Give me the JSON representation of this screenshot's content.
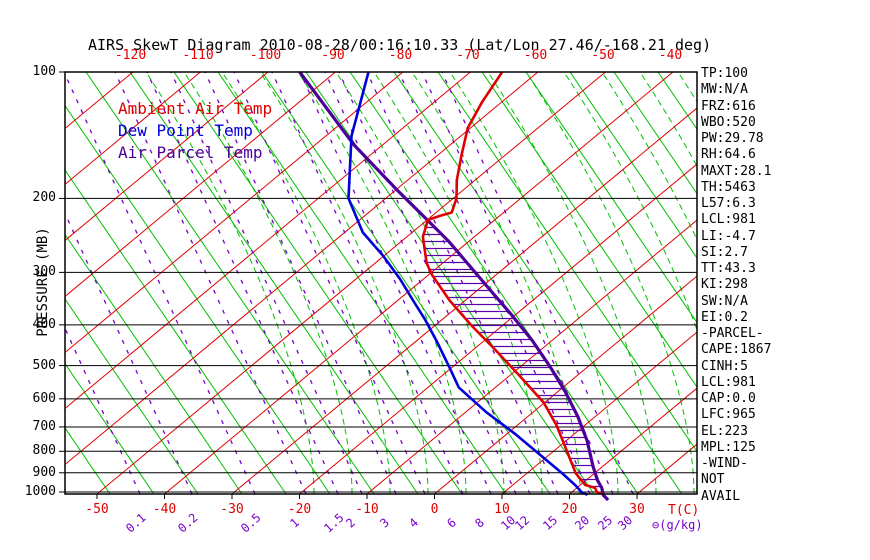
{
  "title": "AIRS SkewT Diagram 2010-08-28/00:16:10.33 (Lat/Lon 27.46/-168.21 deg)",
  "legend": {
    "items": [
      {
        "key": "ambient",
        "label": "Ambient Air Temp"
      },
      {
        "key": "dew",
        "label": "Dew Point Temp"
      },
      {
        "key": "parcel",
        "label": "Air Parcel Temp"
      }
    ]
  },
  "axes": {
    "pressure": {
      "label": "PRESSURE (MB)",
      "ticks": [
        100,
        200,
        300,
        400,
        500,
        600,
        700,
        800,
        900,
        1000
      ]
    },
    "temperature": {
      "unit_label": "T(C)",
      "top_ticks": [
        -120,
        -110,
        -100,
        -90,
        -80,
        -70,
        -60,
        -50,
        -40
      ],
      "bottom_ticks": [
        -50,
        -40,
        -30,
        -20,
        -10,
        0,
        10,
        20,
        30
      ]
    },
    "mixing_ratio": {
      "unit_label": "⊖(g/kg)",
      "ticks": [
        0.1,
        0.2,
        0.5,
        1,
        1.5,
        2,
        3,
        4,
        6,
        8,
        10,
        12,
        15,
        20,
        25,
        30
      ]
    }
  },
  "indices": {
    "items": [
      "TP:100",
      "MW:N/A",
      "FRZ:616",
      "WBO:520",
      "PW:29.78",
      "RH:64.6",
      "MAXT:28.1",
      "TH:5463",
      "L57:6.3",
      "LCL:981",
      "LI:-4.7",
      "SI:2.7",
      "TT:43.3",
      "KI:298",
      "SW:N/A",
      "EI:0.2",
      "-PARCEL-",
      "CAPE:1867",
      "CINH:5",
      "LCL:981",
      "CAP:0.0",
      "LFC:965",
      "EL:223",
      "MPL:125",
      "-WIND-",
      "NOT",
      "AVAIL"
    ]
  },
  "colors": {
    "ambient": "#e00000",
    "dew": "#0000dd",
    "parcel": "#4c0099",
    "isotherm": "#e00000",
    "dry_adiabat": "#00c000",
    "moist_adiabat": "#00c000",
    "mixing_ratio": "#7a00cc",
    "pressure_line": "#000000",
    "hatch": "#5a00aa",
    "text": "#000000"
  },
  "chart_data": {
    "type": "line",
    "title": "AIRS SkewT Diagram 2010-08-28/00:16:10.33 (Lat/Lon 27.46/-168.21 deg)",
    "x": "temperature_C",
    "y": "pressure_mb",
    "y_scale": "log",
    "y_range": [
      100,
      1050
    ],
    "x_top_range": [
      -120,
      -40
    ],
    "x_bottom_range": [
      -50,
      30
    ],
    "skew_note": "isotherms slant up-right; dry adiabats slant down-right; CAPE area hatched between ambient and parcel curves",
    "series": [
      {
        "name": "Ambient Air Temp",
        "key": "ambient",
        "points": [
          [
            100,
            -65.3
          ],
          [
            118,
            -62.9
          ],
          [
            136,
            -60.4
          ],
          [
            157,
            -56.6
          ],
          [
            181,
            -52.7
          ],
          [
            200,
            -49.5
          ],
          [
            216,
            -47.7
          ],
          [
            220,
            -48.8
          ],
          [
            225,
            -49.9
          ],
          [
            247,
            -47.6
          ],
          [
            285,
            -42.4
          ],
          [
            304,
            -39.5
          ],
          [
            350,
            -32.3
          ],
          [
            400,
            -24.8
          ],
          [
            455,
            -17.2
          ],
          [
            525,
            -8.9
          ],
          [
            613,
            -0.1
          ],
          [
            695,
            5.9
          ],
          [
            798,
            11.9
          ],
          [
            902,
            17.2
          ],
          [
            962,
            20.7
          ],
          [
            978,
            22.7
          ],
          [
            1000,
            23.7
          ],
          [
            1010,
            24.8
          ]
        ]
      },
      {
        "name": "Dew Point Temp",
        "key": "dew",
        "points": [
          [
            100,
            -85.1
          ],
          [
            142,
            -76.2
          ],
          [
            200,
            -65.5
          ],
          [
            241,
            -57.3
          ],
          [
            274,
            -50.1
          ],
          [
            311,
            -43.5
          ],
          [
            350,
            -37.7
          ],
          [
            388,
            -32.6
          ],
          [
            438,
            -26.9
          ],
          [
            506,
            -20.3
          ],
          [
            564,
            -15.4
          ],
          [
            646,
            -6.9
          ],
          [
            725,
            1.0
          ],
          [
            805,
            7.8
          ],
          [
            908,
            15.6
          ],
          [
            962,
            19.2
          ],
          [
            1005,
            21.7
          ],
          [
            1015,
            22.8
          ]
        ]
      },
      {
        "name": "Air Parcel Temp",
        "key": "parcel",
        "points": [
          [
            100,
            -95.3
          ],
          [
            149,
            -74.3
          ],
          [
            190,
            -60.1
          ],
          [
            225,
            -50.0
          ],
          [
            253,
            -43.0
          ],
          [
            288,
            -35.8
          ],
          [
            332,
            -27.9
          ],
          [
            379,
            -20.5
          ],
          [
            436,
            -12.9
          ],
          [
            503,
            -5.6
          ],
          [
            577,
            1.1
          ],
          [
            661,
            7.4
          ],
          [
            755,
            13.1
          ],
          [
            870,
            18.6
          ],
          [
            938,
            21.7
          ],
          [
            978,
            23.7
          ],
          [
            1017,
            25.2
          ],
          [
            1045,
            26.8
          ]
        ]
      }
    ],
    "hatch_region": {
      "between": [
        "Ambient Air Temp",
        "Air Parcel Temp"
      ],
      "pressure_from": 225,
      "pressure_to": 1010,
      "meaning": "CAPE:1867"
    }
  }
}
